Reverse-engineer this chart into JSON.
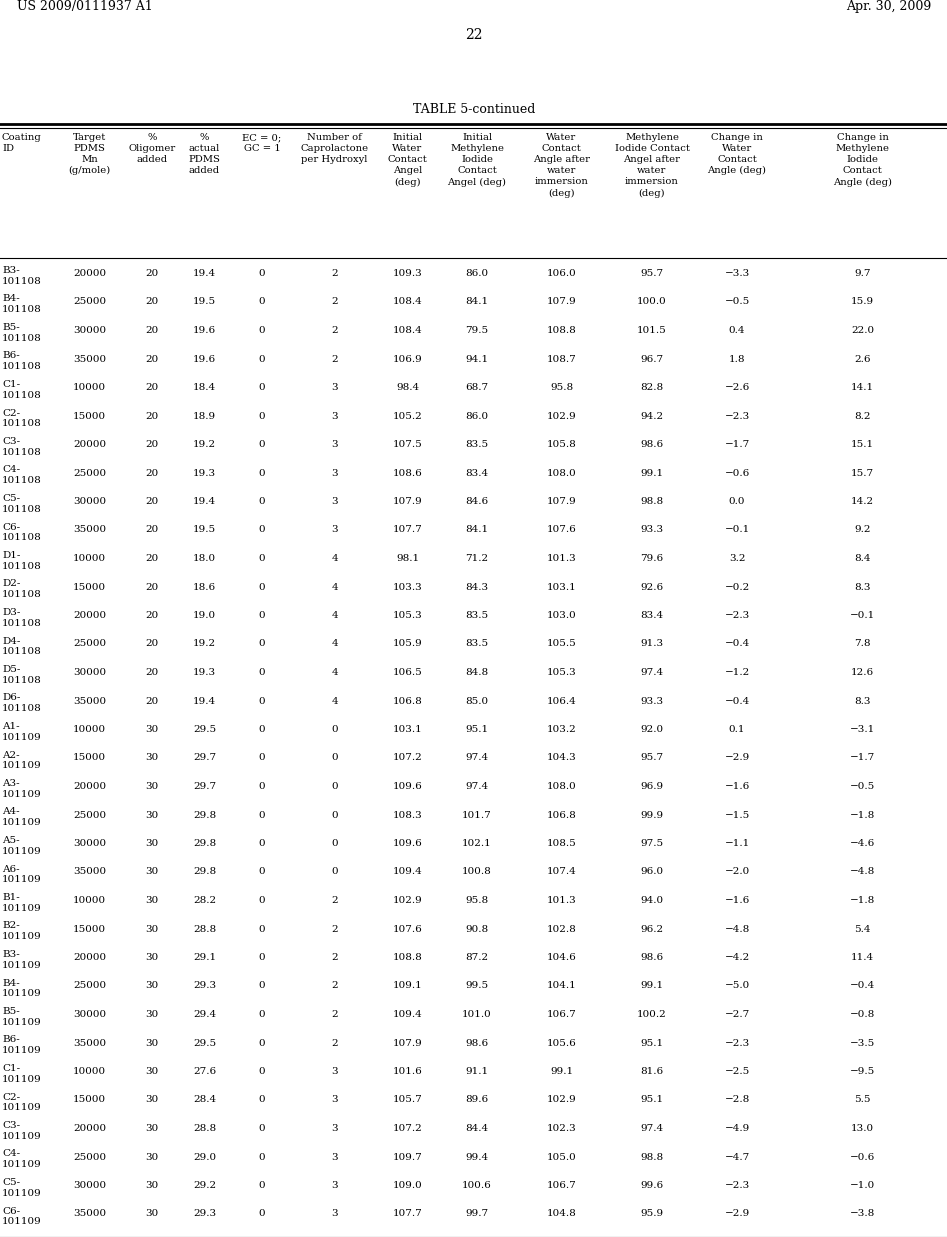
{
  "header_left": "US 2009/0111937 A1",
  "header_right": "Apr. 30, 2009",
  "page_number": "22",
  "table_title": "TABLE 5-continued",
  "rows": [
    [
      "B3-\n101108",
      "20000",
      "20",
      "19.4",
      "0",
      "2",
      "109.3",
      "86.0",
      "106.0",
      "95.7",
      "−3.3",
      "9.7"
    ],
    [
      "B4-\n101108",
      "25000",
      "20",
      "19.5",
      "0",
      "2",
      "108.4",
      "84.1",
      "107.9",
      "100.0",
      "−0.5",
      "15.9"
    ],
    [
      "B5-\n101108",
      "30000",
      "20",
      "19.6",
      "0",
      "2",
      "108.4",
      "79.5",
      "108.8",
      "101.5",
      "0.4",
      "22.0"
    ],
    [
      "B6-\n101108",
      "35000",
      "20",
      "19.6",
      "0",
      "2",
      "106.9",
      "94.1",
      "108.7",
      "96.7",
      "1.8",
      "2.6"
    ],
    [
      "C1-\n101108",
      "10000",
      "20",
      "18.4",
      "0",
      "3",
      "98.4",
      "68.7",
      "95.8",
      "82.8",
      "−2.6",
      "14.1"
    ],
    [
      "C2-\n101108",
      "15000",
      "20",
      "18.9",
      "0",
      "3",
      "105.2",
      "86.0",
      "102.9",
      "94.2",
      "−2.3",
      "8.2"
    ],
    [
      "C3-\n101108",
      "20000",
      "20",
      "19.2",
      "0",
      "3",
      "107.5",
      "83.5",
      "105.8",
      "98.6",
      "−1.7",
      "15.1"
    ],
    [
      "C4-\n101108",
      "25000",
      "20",
      "19.3",
      "0",
      "3",
      "108.6",
      "83.4",
      "108.0",
      "99.1",
      "−0.6",
      "15.7"
    ],
    [
      "C5-\n101108",
      "30000",
      "20",
      "19.4",
      "0",
      "3",
      "107.9",
      "84.6",
      "107.9",
      "98.8",
      "0.0",
      "14.2"
    ],
    [
      "C6-\n101108",
      "35000",
      "20",
      "19.5",
      "0",
      "3",
      "107.7",
      "84.1",
      "107.6",
      "93.3",
      "−0.1",
      "9.2"
    ],
    [
      "D1-\n101108",
      "10000",
      "20",
      "18.0",
      "0",
      "4",
      "98.1",
      "71.2",
      "101.3",
      "79.6",
      "3.2",
      "8.4"
    ],
    [
      "D2-\n101108",
      "15000",
      "20",
      "18.6",
      "0",
      "4",
      "103.3",
      "84.3",
      "103.1",
      "92.6",
      "−0.2",
      "8.3"
    ],
    [
      "D3-\n101108",
      "20000",
      "20",
      "19.0",
      "0",
      "4",
      "105.3",
      "83.5",
      "103.0",
      "83.4",
      "−2.3",
      "−0.1"
    ],
    [
      "D4-\n101108",
      "25000",
      "20",
      "19.2",
      "0",
      "4",
      "105.9",
      "83.5",
      "105.5",
      "91.3",
      "−0.4",
      "7.8"
    ],
    [
      "D5-\n101108",
      "30000",
      "20",
      "19.3",
      "0",
      "4",
      "106.5",
      "84.8",
      "105.3",
      "97.4",
      "−1.2",
      "12.6"
    ],
    [
      "D6-\n101108",
      "35000",
      "20",
      "19.4",
      "0",
      "4",
      "106.8",
      "85.0",
      "106.4",
      "93.3",
      "−0.4",
      "8.3"
    ],
    [
      "A1-\n101109",
      "10000",
      "30",
      "29.5",
      "0",
      "0",
      "103.1",
      "95.1",
      "103.2",
      "92.0",
      "0.1",
      "−3.1"
    ],
    [
      "A2-\n101109",
      "15000",
      "30",
      "29.7",
      "0",
      "0",
      "107.2",
      "97.4",
      "104.3",
      "95.7",
      "−2.9",
      "−1.7"
    ],
    [
      "A3-\n101109",
      "20000",
      "30",
      "29.7",
      "0",
      "0",
      "109.6",
      "97.4",
      "108.0",
      "96.9",
      "−1.6",
      "−0.5"
    ],
    [
      "A4-\n101109",
      "25000",
      "30",
      "29.8",
      "0",
      "0",
      "108.3",
      "101.7",
      "106.8",
      "99.9",
      "−1.5",
      "−1.8"
    ],
    [
      "A5-\n101109",
      "30000",
      "30",
      "29.8",
      "0",
      "0",
      "109.6",
      "102.1",
      "108.5",
      "97.5",
      "−1.1",
      "−4.6"
    ],
    [
      "A6-\n101109",
      "35000",
      "30",
      "29.8",
      "0",
      "0",
      "109.4",
      "100.8",
      "107.4",
      "96.0",
      "−2.0",
      "−4.8"
    ],
    [
      "B1-\n101109",
      "10000",
      "30",
      "28.2",
      "0",
      "2",
      "102.9",
      "95.8",
      "101.3",
      "94.0",
      "−1.6",
      "−1.8"
    ],
    [
      "B2-\n101109",
      "15000",
      "30",
      "28.8",
      "0",
      "2",
      "107.6",
      "90.8",
      "102.8",
      "96.2",
      "−4.8",
      "5.4"
    ],
    [
      "B3-\n101109",
      "20000",
      "30",
      "29.1",
      "0",
      "2",
      "108.8",
      "87.2",
      "104.6",
      "98.6",
      "−4.2",
      "11.4"
    ],
    [
      "B4-\n101109",
      "25000",
      "30",
      "29.3",
      "0",
      "2",
      "109.1",
      "99.5",
      "104.1",
      "99.1",
      "−5.0",
      "−0.4"
    ],
    [
      "B5-\n101109",
      "30000",
      "30",
      "29.4",
      "0",
      "2",
      "109.4",
      "101.0",
      "106.7",
      "100.2",
      "−2.7",
      "−0.8"
    ],
    [
      "B6-\n101109",
      "35000",
      "30",
      "29.5",
      "0",
      "2",
      "107.9",
      "98.6",
      "105.6",
      "95.1",
      "−2.3",
      "−3.5"
    ],
    [
      "C1-\n101109",
      "10000",
      "30",
      "27.6",
      "0",
      "3",
      "101.6",
      "91.1",
      "99.1",
      "81.6",
      "−2.5",
      "−9.5"
    ],
    [
      "C2-\n101109",
      "15000",
      "30",
      "28.4",
      "0",
      "3",
      "105.7",
      "89.6",
      "102.9",
      "95.1",
      "−2.8",
      "5.5"
    ],
    [
      "C3-\n101109",
      "20000",
      "30",
      "28.8",
      "0",
      "3",
      "107.2",
      "84.4",
      "102.3",
      "97.4",
      "−4.9",
      "13.0"
    ],
    [
      "C4-\n101109",
      "25000",
      "30",
      "29.0",
      "0",
      "3",
      "109.7",
      "99.4",
      "105.0",
      "98.8",
      "−4.7",
      "−0.6"
    ],
    [
      "C5-\n101109",
      "30000",
      "30",
      "29.2",
      "0",
      "3",
      "109.0",
      "100.6",
      "106.7",
      "99.6",
      "−2.3",
      "−1.0"
    ],
    [
      "C6-\n101109",
      "35000",
      "30",
      "29.3",
      "0",
      "3",
      "107.7",
      "99.7",
      "104.8",
      "95.9",
      "−2.9",
      "−3.8"
    ]
  ],
  "bg_color": "#ffffff",
  "text_color": "#000000"
}
